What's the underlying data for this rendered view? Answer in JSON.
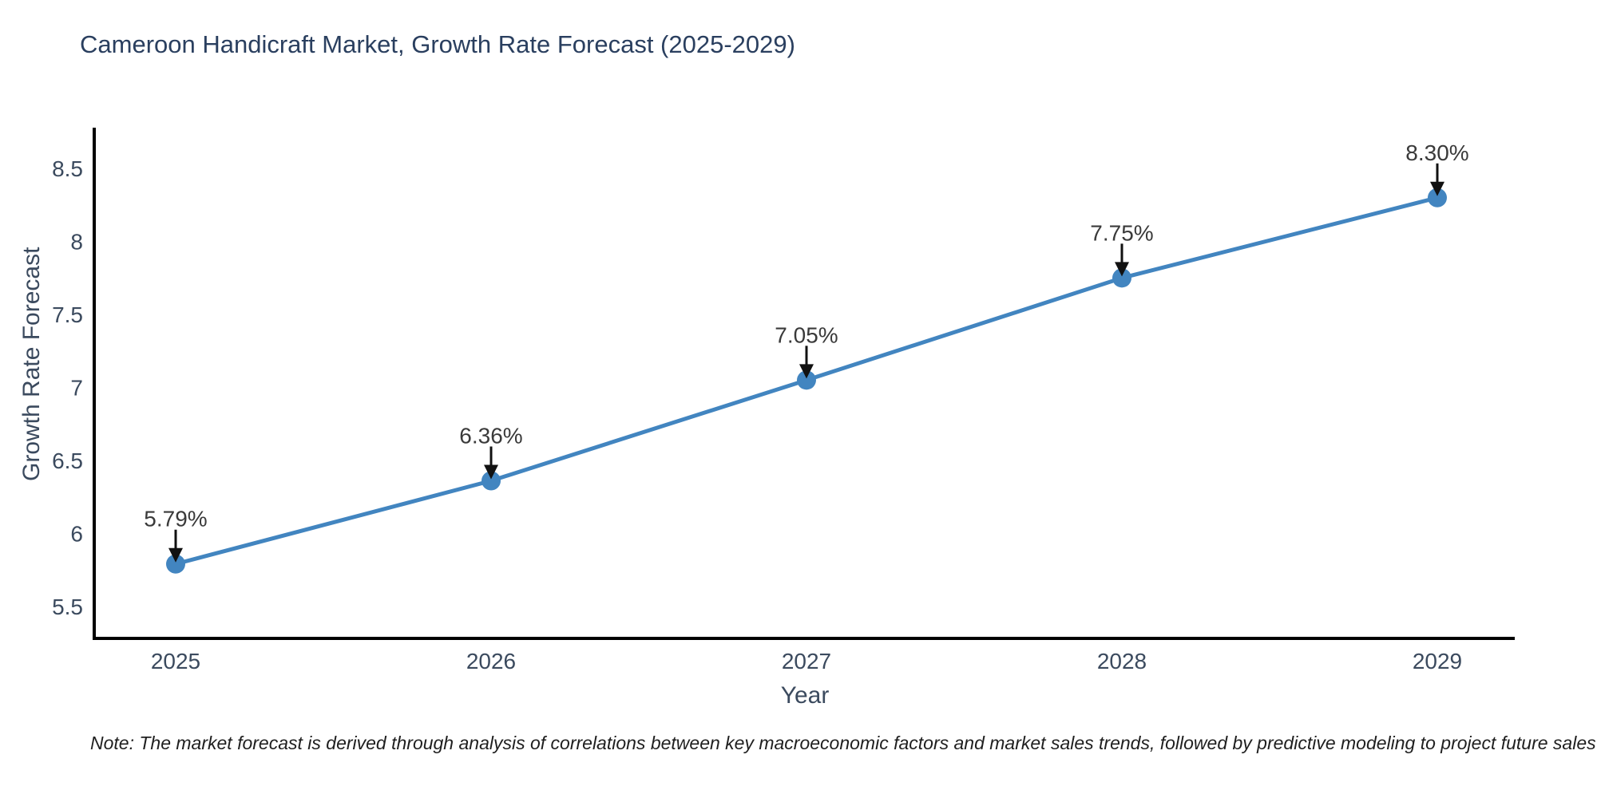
{
  "title": "Cameroon Handicraft Market, Growth Rate Forecast (2025-2029)",
  "note": "Note: The market forecast is derived through analysis of correlations between key macroeconomic factors and market sales trends, followed by predictive modeling to project future sales",
  "colors": {
    "line": "#4285c0",
    "marker": "#4285c0",
    "axis": "#000000",
    "tick_text": "#3b4a5e",
    "annotation_text": "#3a3a3a",
    "arrow": "#111111",
    "background": "#ffffff",
    "title_text": "#2a3f5f"
  },
  "chart_data": {
    "type": "line",
    "title": "Cameroon Handicraft Market, Growth Rate Forecast (2025-2029)",
    "xlabel": "Year",
    "ylabel": "Growth Rate Forecast",
    "x": [
      "2025",
      "2026",
      "2027",
      "2028",
      "2029"
    ],
    "values": [
      5.79,
      6.36,
      7.05,
      7.75,
      8.3
    ],
    "point_labels": [
      "5.79%",
      "6.36%",
      "7.05%",
      "7.75%",
      "8.30%"
    ],
    "yticks": [
      5.5,
      6,
      6.5,
      7,
      7.5,
      8,
      8.5
    ],
    "ytick_labels": [
      "5.5",
      "6",
      "6.5",
      "7",
      "7.5",
      "8",
      "8.5"
    ],
    "ylim": [
      5.28,
      8.78
    ],
    "grid": false,
    "legend": "none",
    "marker": "circle",
    "annotations": "value labels with down arrows above each point"
  }
}
